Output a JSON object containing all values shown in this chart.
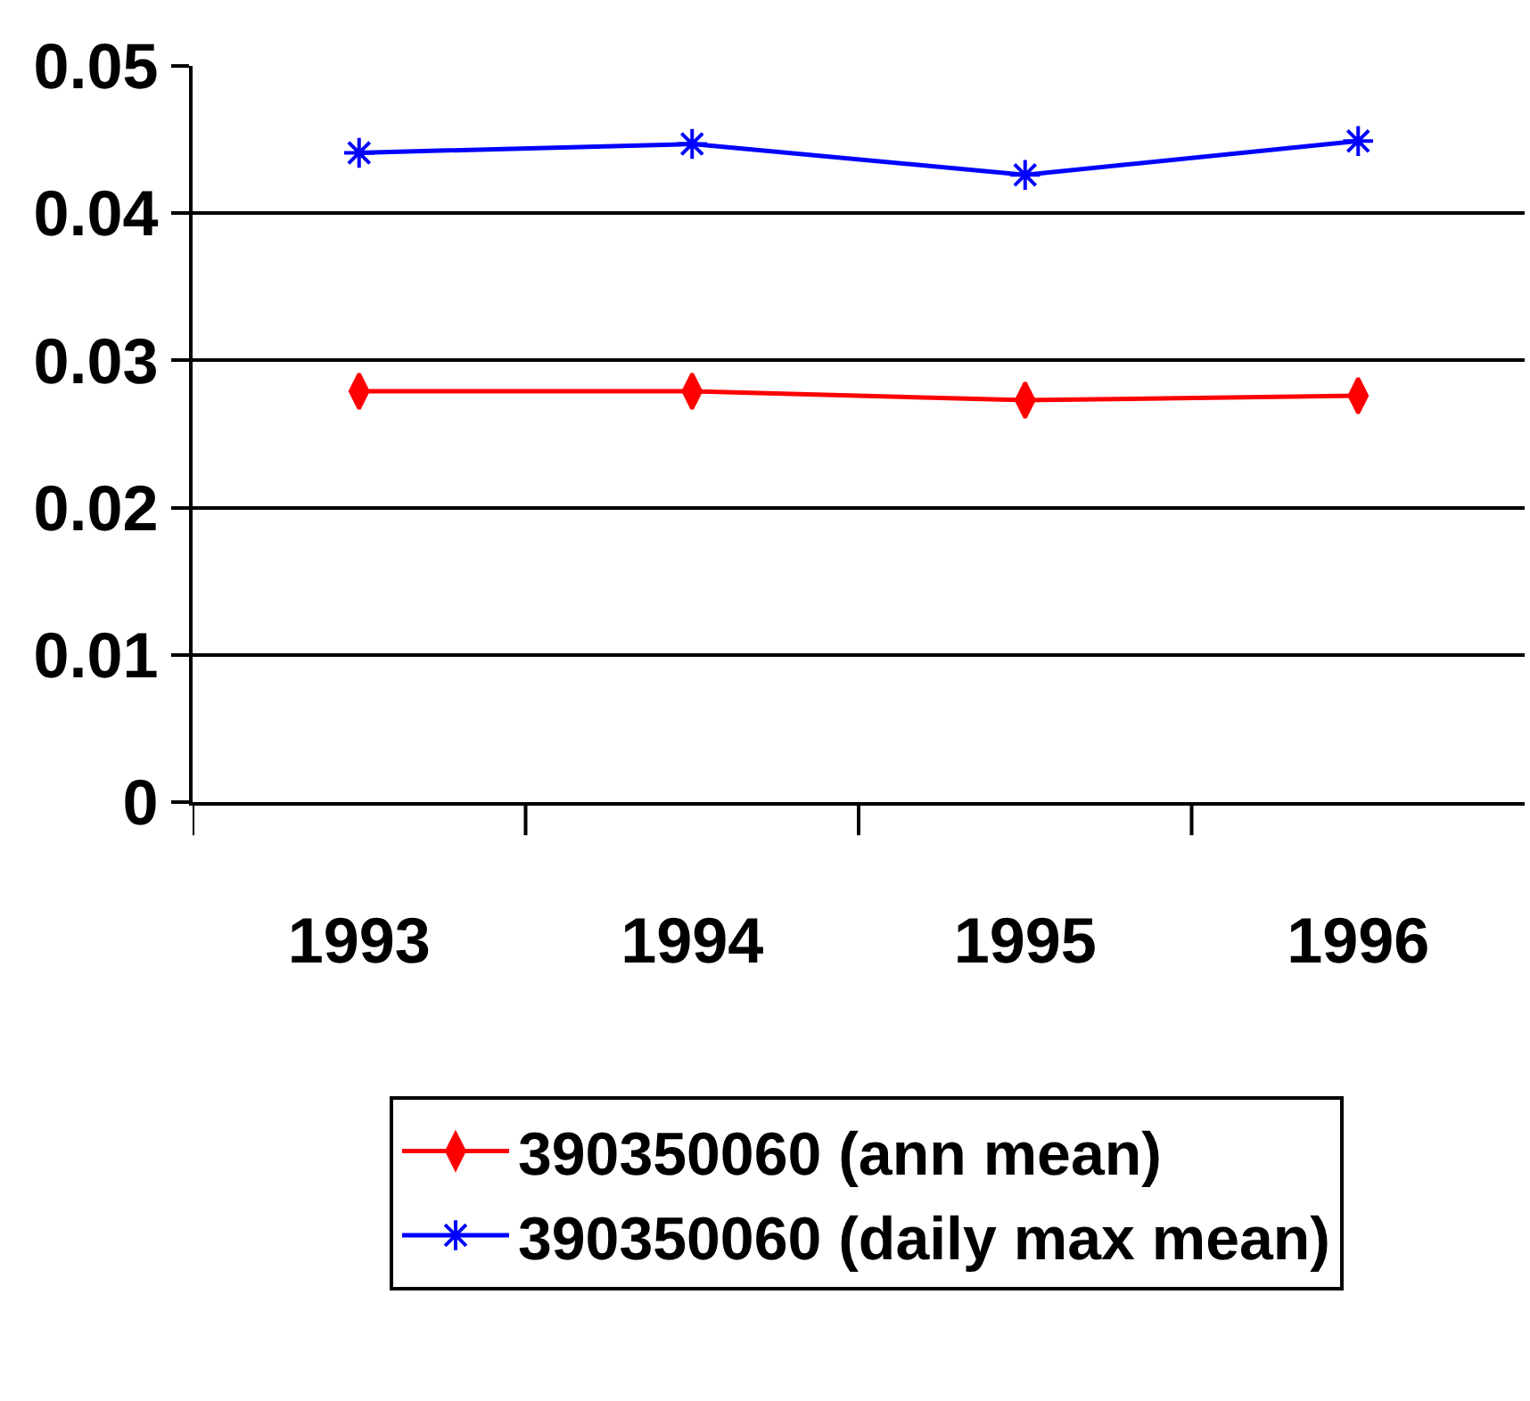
{
  "chart_data": {
    "type": "line",
    "categories": [
      "1993",
      "1994",
      "1995",
      "1996"
    ],
    "series": [
      {
        "name": "390350060 (ann mean)",
        "color": "#ff0000",
        "marker": "diamond",
        "values": [
          0.0279,
          0.0279,
          0.0273,
          0.0276
        ]
      },
      {
        "name": "390350060 (daily max mean)",
        "color": "#0000ff",
        "marker": "cross",
        "values": [
          0.0441,
          0.0447,
          0.0426,
          0.0449
        ]
      }
    ],
    "ylim": [
      0,
      0.05
    ],
    "yticks": [
      0,
      0.01,
      0.02,
      0.03,
      0.04,
      0.05
    ],
    "grid": "y",
    "legend": "bottom"
  }
}
